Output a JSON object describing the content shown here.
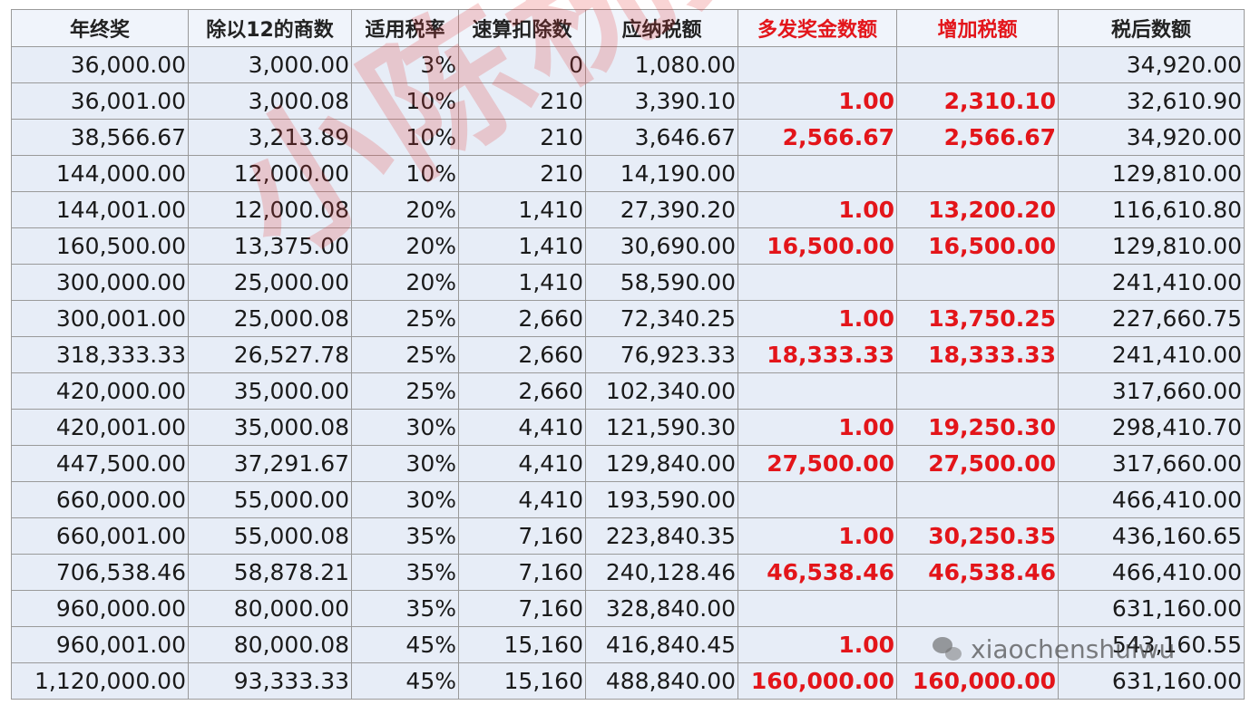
{
  "headers": [
    {
      "label": "年终奖",
      "accent": false
    },
    {
      "label": "除以12的商数",
      "accent": false
    },
    {
      "label": "适用税率",
      "accent": false
    },
    {
      "label": "速算扣除数",
      "accent": false
    },
    {
      "label": "应纳税额",
      "accent": false
    },
    {
      "label": "多发奖金数额",
      "accent": true
    },
    {
      "label": "增加税额",
      "accent": true
    },
    {
      "label": "税后数额",
      "accent": false
    }
  ],
  "rows": [
    [
      "36,000.00",
      "3,000.00",
      "3%",
      "0",
      "1,080.00",
      "",
      "",
      "34,920.00"
    ],
    [
      "36,001.00",
      "3,000.08",
      "10%",
      "210",
      "3,390.10",
      "1.00",
      "2,310.10",
      "32,610.90"
    ],
    [
      "38,566.67",
      "3,213.89",
      "10%",
      "210",
      "3,646.67",
      "2,566.67",
      "2,566.67",
      "34,920.00"
    ],
    [
      "144,000.00",
      "12,000.00",
      "10%",
      "210",
      "14,190.00",
      "",
      "",
      "129,810.00"
    ],
    [
      "144,001.00",
      "12,000.08",
      "20%",
      "1,410",
      "27,390.20",
      "1.00",
      "13,200.20",
      "116,610.80"
    ],
    [
      "160,500.00",
      "13,375.00",
      "20%",
      "1,410",
      "30,690.00",
      "16,500.00",
      "16,500.00",
      "129,810.00"
    ],
    [
      "300,000.00",
      "25,000.00",
      "20%",
      "1,410",
      "58,590.00",
      "",
      "",
      "241,410.00"
    ],
    [
      "300,001.00",
      "25,000.08",
      "25%",
      "2,660",
      "72,340.25",
      "1.00",
      "13,750.25",
      "227,660.75"
    ],
    [
      "318,333.33",
      "26,527.78",
      "25%",
      "2,660",
      "76,923.33",
      "18,333.33",
      "18,333.33",
      "241,410.00"
    ],
    [
      "420,000.00",
      "35,000.00",
      "25%",
      "2,660",
      "102,340.00",
      "",
      "",
      "317,660.00"
    ],
    [
      "420,001.00",
      "35,000.08",
      "30%",
      "4,410",
      "121,590.30",
      "1.00",
      "19,250.30",
      "298,410.70"
    ],
    [
      "447,500.00",
      "37,291.67",
      "30%",
      "4,410",
      "129,840.00",
      "27,500.00",
      "27,500.00",
      "317,660.00"
    ],
    [
      "660,000.00",
      "55,000.00",
      "30%",
      "4,410",
      "193,590.00",
      "",
      "",
      "466,410.00"
    ],
    [
      "660,001.00",
      "55,000.08",
      "35%",
      "7,160",
      "223,840.35",
      "1.00",
      "30,250.35",
      "436,160.65"
    ],
    [
      "706,538.46",
      "58,878.21",
      "35%",
      "7,160",
      "240,128.46",
      "46,538.46",
      "46,538.46",
      "466,410.00"
    ],
    [
      "960,000.00",
      "80,000.00",
      "35%",
      "7,160",
      "328,840.00",
      "",
      "",
      "631,160.00"
    ],
    [
      "960,001.00",
      "80,000.08",
      "45%",
      "15,160",
      "416,840.45",
      "1.00",
      "",
      "543,160.55"
    ],
    [
      "1,120,000.00",
      "93,333.33",
      "45%",
      "15,160",
      "488,840.00",
      "160,000.00",
      "160,000.00",
      "631,160.00"
    ]
  ],
  "accent_columns": [
    5,
    6
  ],
  "watermark": "小陈税务原创",
  "wechat_id": "xiaochenshuiwu",
  "wechat_icon": "wechat-icon",
  "colors": {
    "accent": "#e3151a",
    "cell_bg": "#e7edf7",
    "header_bg": "#f0f4fb"
  }
}
